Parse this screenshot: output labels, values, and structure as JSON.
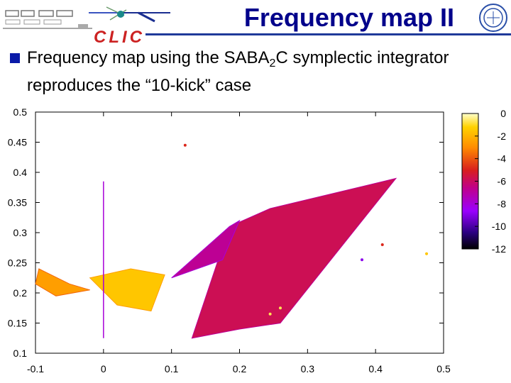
{
  "slide": {
    "title": "Frequency map II",
    "bullet": {
      "text_before": "Frequency map using the SABA",
      "subscript": "2",
      "text_after": "C symplectic integrator reproduces the “10-kick” case"
    },
    "logo_text": "CLIC"
  },
  "chart_data": {
    "type": "heatmap",
    "title": "",
    "xlabel": "",
    "ylabel": "",
    "xlim": [
      -0.1,
      0.5
    ],
    "ylim": [
      0.1,
      0.5
    ],
    "x_ticks": [
      {
        "value": -0.1,
        "label": "-0.1"
      },
      {
        "value": 0,
        "label": "0"
      },
      {
        "value": 0.1,
        "label": "0.1"
      },
      {
        "value": 0.2,
        "label": "0.2"
      },
      {
        "value": 0.3,
        "label": "0.3"
      },
      {
        "value": 0.4,
        "label": "0.4"
      },
      {
        "value": 0.5,
        "label": "0.5"
      }
    ],
    "y_ticks": [
      {
        "value": 0.1,
        "label": "0.1"
      },
      {
        "value": 0.15,
        "label": "0.15"
      },
      {
        "value": 0.2,
        "label": "0.2"
      },
      {
        "value": 0.25,
        "label": "0.25"
      },
      {
        "value": 0.3,
        "label": "0.3"
      },
      {
        "value": 0.35,
        "label": "0.35"
      },
      {
        "value": 0.4,
        "label": "0.4"
      },
      {
        "value": 0.45,
        "label": "0.45"
      },
      {
        "value": 0.5,
        "label": "0.5"
      }
    ],
    "colorbar": {
      "range": [
        -12,
        0
      ],
      "ticks": [
        {
          "value": 0,
          "label": "0"
        },
        {
          "value": -2,
          "label": "-2"
        },
        {
          "value": -4,
          "label": "-4"
        },
        {
          "value": -6,
          "label": "-6"
        },
        {
          "value": -8,
          "label": "-8"
        },
        {
          "value": -10,
          "label": "-10"
        },
        {
          "value": -12,
          "label": "-12"
        }
      ],
      "colors": [
        "#000000",
        "#5a00b0",
        "#9a00ff",
        "#c0008a",
        "#d81e1e",
        "#ff8c00",
        "#ffd200",
        "#ffffcc"
      ]
    },
    "grid": false,
    "regions": [
      {
        "name": "main-wedge",
        "level": -6,
        "polygon": [
          [
            0.185,
            0.31
          ],
          [
            0.245,
            0.34
          ],
          [
            0.43,
            0.39
          ],
          [
            0.26,
            0.15
          ],
          [
            0.2,
            0.14
          ],
          [
            0.13,
            0.125
          ]
        ]
      },
      {
        "name": "upper-band",
        "level": -7,
        "polygon": [
          [
            0.1,
            0.225
          ],
          [
            0.185,
            0.31
          ],
          [
            0.2,
            0.32
          ],
          [
            0.175,
            0.255
          ]
        ]
      },
      {
        "name": "left-fan",
        "level": -2,
        "polygon": [
          [
            -0.02,
            0.225
          ],
          [
            0.04,
            0.24
          ],
          [
            0.09,
            0.23
          ],
          [
            0.07,
            0.17
          ],
          [
            0.02,
            0.18
          ]
        ]
      },
      {
        "name": "left-lobe",
        "level": -3,
        "polygon": [
          [
            -0.095,
            0.24
          ],
          [
            -0.05,
            0.215
          ],
          [
            -0.02,
            0.205
          ],
          [
            -0.07,
            0.195
          ],
          [
            -0.1,
            0.215
          ]
        ]
      }
    ],
    "lines": [
      {
        "name": "vertical-resonance",
        "level": -8,
        "x": [
          0,
          0
        ],
        "y": [
          0.125,
          0.385
        ]
      }
    ],
    "points": [
      {
        "x": 0.12,
        "y": 0.445,
        "level": -5
      },
      {
        "x": 0.41,
        "y": 0.28,
        "level": -5
      },
      {
        "x": 0.475,
        "y": 0.265,
        "level": -2
      },
      {
        "x": 0.38,
        "y": 0.255,
        "level": -9
      },
      {
        "x": 0.245,
        "y": 0.165,
        "level": -1
      },
      {
        "x": 0.26,
        "y": 0.175,
        "level": -1
      }
    ]
  }
}
